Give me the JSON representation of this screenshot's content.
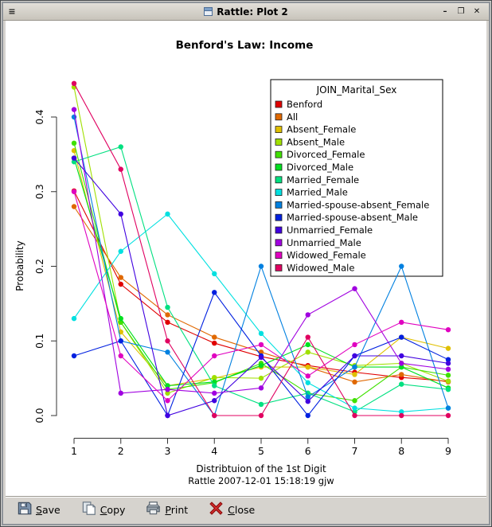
{
  "window": {
    "title": "Rattle: Plot 2",
    "menu_glyph": "≡",
    "minimize_glyph": "–",
    "maximize_glyph": "❐",
    "close_glyph": "✕"
  },
  "chart_data": {
    "type": "line",
    "title": "Benford's Law: Income",
    "xlabel": "Distribtuion of the 1st Digit",
    "ylabel": "Probability",
    "footer": "Rattle 2007-12-01 15:18:19 gjw",
    "x": [
      1,
      2,
      3,
      4,
      5,
      6,
      7,
      8,
      9
    ],
    "x_tick_labels": [
      "1",
      "2",
      "3",
      "4",
      "5",
      "6",
      "7",
      "8",
      "9"
    ],
    "y_tick_labels": [
      "0.0",
      "0.1",
      "0.2",
      "0.3",
      "0.4"
    ],
    "y_ticks": [
      0.0,
      0.1,
      0.2,
      0.3,
      0.4
    ],
    "ylim": [
      0.0,
      0.44
    ],
    "grid": "off",
    "legend_position": "upper-right-inside",
    "legend_title": "JOIN_Marital_Sex",
    "series": [
      {
        "name": "Benford",
        "color": "#E00000",
        "values": [
          0.301,
          0.176,
          0.125,
          0.097,
          0.079,
          0.067,
          0.058,
          0.051,
          0.046
        ]
      },
      {
        "name": "All",
        "color": "#E06800",
        "values": [
          0.28,
          0.185,
          0.135,
          0.105,
          0.085,
          0.065,
          0.045,
          0.055,
          0.045
        ]
      },
      {
        "name": "Absent_Female",
        "color": "#E0C000",
        "values": [
          0.355,
          0.112,
          0.04,
          0.05,
          0.065,
          0.065,
          0.055,
          0.105,
          0.09
        ]
      },
      {
        "name": "Absent_Male",
        "color": "#A0E000",
        "values": [
          0.44,
          0.125,
          0.03,
          0.051,
          0.05,
          0.085,
          0.067,
          0.07,
          0.046
        ]
      },
      {
        "name": "Divorced_Female",
        "color": "#40E000",
        "values": [
          0.365,
          0.125,
          0.035,
          0.044,
          0.07,
          0.03,
          0.02,
          0.065,
          0.054
        ]
      },
      {
        "name": "Divorced_Male",
        "color": "#00E020",
        "values": [
          0.345,
          0.13,
          0.04,
          0.045,
          0.067,
          0.095,
          0.065,
          0.065,
          0.037
        ]
      },
      {
        "name": "Married_Female",
        "color": "#00E080",
        "values": [
          0.34,
          0.36,
          0.145,
          0.04,
          0.015,
          0.03,
          0.005,
          0.042,
          0.035
        ]
      },
      {
        "name": "Married_Male",
        "color": "#00E0E0",
        "values": [
          0.13,
          0.22,
          0.27,
          0.19,
          0.11,
          0.044,
          0.01,
          0.005,
          0.01
        ]
      },
      {
        "name": "Married-spouse-absent_Female",
        "color": "#0080E0",
        "values": [
          0.4,
          0.1,
          0.085,
          0.0,
          0.2,
          0.025,
          0.065,
          0.2,
          0.01
        ]
      },
      {
        "name": "Married-spouse-absent_Male",
        "color": "#0020E0",
        "values": [
          0.08,
          0.1,
          0.0,
          0.165,
          0.08,
          0.0,
          0.08,
          0.105,
          0.075
        ]
      },
      {
        "name": "Unmarried_Female",
        "color": "#4000E0",
        "values": [
          0.345,
          0.27,
          0.0,
          0.02,
          0.078,
          0.019,
          0.08,
          0.08,
          0.07
        ]
      },
      {
        "name": "Unmarried_Male",
        "color": "#A000E0",
        "values": [
          0.41,
          0.03,
          0.035,
          0.03,
          0.037,
          0.135,
          0.17,
          0.07,
          0.062
        ]
      },
      {
        "name": "Widowed_Female",
        "color": "#E000C0",
        "values": [
          0.3,
          0.08,
          0.02,
          0.08,
          0.095,
          0.053,
          0.095,
          0.125,
          0.115
        ]
      },
      {
        "name": "Widowed_Male",
        "color": "#E00060",
        "values": [
          0.445,
          0.33,
          0.1,
          0.0,
          0.0,
          0.105,
          0.0,
          0.0,
          0.0
        ]
      }
    ]
  },
  "toolbar": {
    "buttons": [
      {
        "label": "Save",
        "icon": "floppy-icon"
      },
      {
        "label": "Copy",
        "icon": "copy-icon"
      },
      {
        "label": "Print",
        "icon": "printer-icon"
      },
      {
        "label": "Close",
        "icon": "close-x-icon"
      }
    ]
  }
}
